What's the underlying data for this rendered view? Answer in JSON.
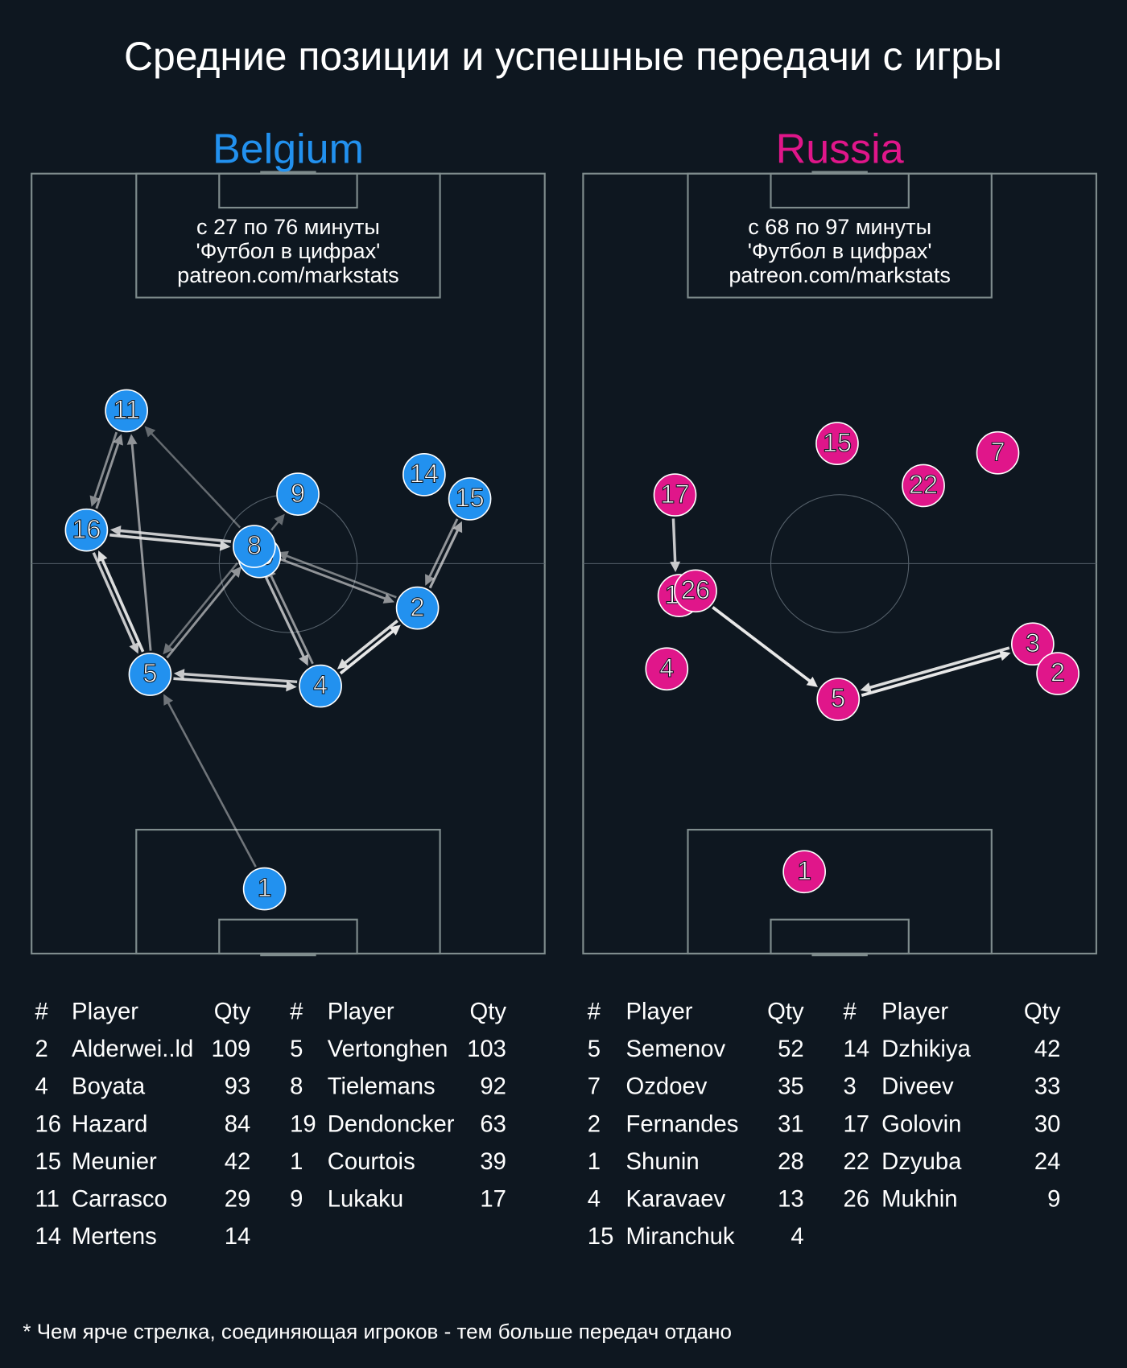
{
  "title": "Средние позиции и успешные передачи с игры",
  "footnote": "* Чем ярче стрелка, соединяющая игроков - тем больше передач отдано",
  "teams": [
    {
      "name": "Belgium",
      "color": "#2291ef",
      "subtitle": [
        "с 27 по 76 минуты",
        "'Футбол в цифрах'",
        "patreon.com/markstats"
      ],
      "players": [
        {
          "number": 19,
          "x": 44.4,
          "y": 49.1
        },
        {
          "number": 11,
          "x": 18.5,
          "y": 30.4
        },
        {
          "number": 16,
          "x": 10.7,
          "y": 45.7
        },
        {
          "number": 9,
          "x": 51.9,
          "y": 41.1
        },
        {
          "number": 8,
          "x": 43.4,
          "y": 47.8
        },
        {
          "number": 14,
          "x": 76.5,
          "y": 38.6
        },
        {
          "number": 15,
          "x": 85.4,
          "y": 41.7
        },
        {
          "number": 2,
          "x": 75.2,
          "y": 55.7
        },
        {
          "number": 5,
          "x": 23.1,
          "y": 64.2
        },
        {
          "number": 4,
          "x": 56.3,
          "y": 65.7
        },
        {
          "number": 1,
          "x": 45.4,
          "y": 91.7
        }
      ],
      "passes": [
        {
          "from": 1,
          "to": 5,
          "opacity": 0.45
        },
        {
          "from": 5,
          "to": 8,
          "opacity": 0.6
        },
        {
          "from": 8,
          "to": 5,
          "opacity": 0.45
        },
        {
          "from": 5,
          "to": 16,
          "opacity": 0.95
        },
        {
          "from": 16,
          "to": 5,
          "opacity": 0.85
        },
        {
          "from": 16,
          "to": 8,
          "opacity": 0.9
        },
        {
          "from": 8,
          "to": 16,
          "opacity": 0.85
        },
        {
          "from": 16,
          "to": 11,
          "opacity": 0.6
        },
        {
          "from": 11,
          "to": 16,
          "opacity": 0.55
        },
        {
          "from": 5,
          "to": 11,
          "opacity": 0.6
        },
        {
          "from": 8,
          "to": 11,
          "opacity": 0.4
        },
        {
          "from": 5,
          "to": 4,
          "opacity": 0.9
        },
        {
          "from": 4,
          "to": 5,
          "opacity": 0.85
        },
        {
          "from": 8,
          "to": 4,
          "opacity": 0.75
        },
        {
          "from": 4,
          "to": 8,
          "opacity": 0.6
        },
        {
          "from": 8,
          "to": 2,
          "opacity": 0.6
        },
        {
          "from": 2,
          "to": 8,
          "opacity": 0.5
        },
        {
          "from": 4,
          "to": 2,
          "opacity": 1
        },
        {
          "from": 2,
          "to": 4,
          "opacity": 0.95
        },
        {
          "from": 2,
          "to": 15,
          "opacity": 0.7
        },
        {
          "from": 15,
          "to": 2,
          "opacity": 0.6
        },
        {
          "from": 8,
          "to": 9,
          "opacity": 0.4
        }
      ],
      "tables": [
        {
          "columns": [
            "#",
            "Player",
            "Qty"
          ],
          "rows": [
            [
              2,
              "Alderwei..ld",
              109
            ],
            [
              4,
              "Boyata",
              93
            ],
            [
              16,
              "Hazard",
              84
            ],
            [
              15,
              "Meunier",
              42
            ],
            [
              11,
              "Carrasco",
              29
            ],
            [
              14,
              "Mertens",
              14
            ]
          ]
        },
        {
          "columns": [
            "#",
            "Player",
            "Qty"
          ],
          "rows": [
            [
              5,
              "Vertonghen",
              103
            ],
            [
              8,
              "Tielemans",
              92
            ],
            [
              19,
              "Dendoncker",
              63
            ],
            [
              1,
              "Courtois",
              39
            ],
            [
              9,
              "Lukaku",
              17
            ]
          ]
        }
      ]
    },
    {
      "name": "Russia",
      "color": "#e0168a",
      "subtitle": [
        "с 68 по 97 минуты",
        "'Футбол в цифрах'",
        "patreon.com/markstats"
      ],
      "players": [
        {
          "number": 15,
          "x": 49.5,
          "y": 34.6
        },
        {
          "number": 7,
          "x": 80.8,
          "y": 35.8
        },
        {
          "number": 22,
          "x": 66.3,
          "y": 40.0
        },
        {
          "number": 17,
          "x": 17.9,
          "y": 41.2
        },
        {
          "number": 14,
          "x": 18.7,
          "y": 54.1
        },
        {
          "number": 26,
          "x": 21.9,
          "y": 53.5
        },
        {
          "number": 4,
          "x": 16.3,
          "y": 63.5
        },
        {
          "number": 5,
          "x": 49.7,
          "y": 67.4
        },
        {
          "number": 3,
          "x": 87.6,
          "y": 60.3
        },
        {
          "number": 2,
          "x": 92.5,
          "y": 64.1
        },
        {
          "number": 1,
          "x": 43.1,
          "y": 89.5
        }
      ],
      "passes": [
        {
          "from": 17,
          "to": 14,
          "opacity": 0.85
        },
        {
          "from": 26,
          "to": 5,
          "opacity": 1
        },
        {
          "from": 5,
          "to": 3,
          "opacity": 1
        },
        {
          "from": 3,
          "to": 5,
          "opacity": 0.95
        }
      ],
      "tables": [
        {
          "columns": [
            "#",
            "Player",
            "Qty"
          ],
          "rows": [
            [
              5,
              "Semenov",
              52
            ],
            [
              7,
              "Ozdoev",
              35
            ],
            [
              2,
              "Fernandes",
              31
            ],
            [
              1,
              "Shunin",
              28
            ],
            [
              4,
              "Karavaev",
              13
            ],
            [
              15,
              "Miranchuk",
              4
            ]
          ]
        },
        {
          "columns": [
            "#",
            "Player",
            "Qty"
          ],
          "rows": [
            [
              14,
              "Dzhikiya",
              42
            ],
            [
              3,
              "Diveev",
              33
            ],
            [
              17,
              "Golovin",
              30
            ],
            [
              22,
              "Dzyuba",
              24
            ],
            [
              26,
              "Mukhin",
              9
            ]
          ]
        }
      ]
    }
  ]
}
